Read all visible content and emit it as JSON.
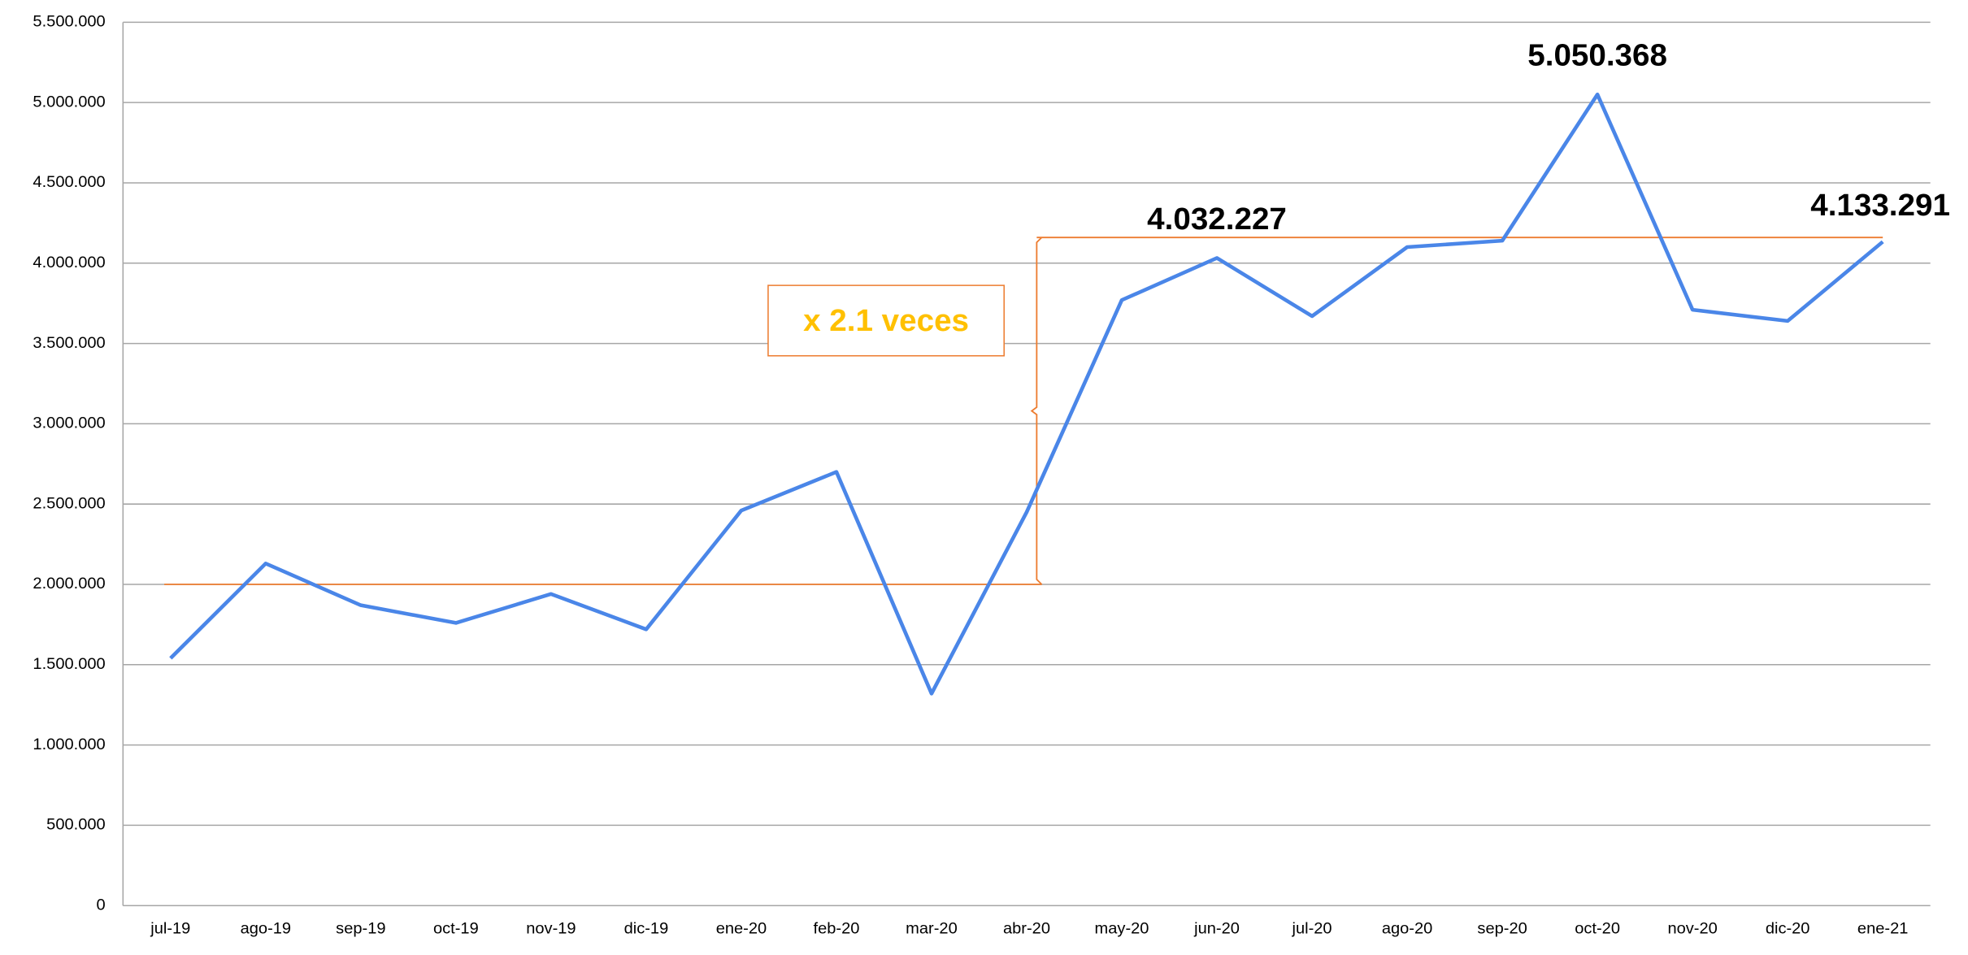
{
  "chart_data": {
    "type": "line",
    "categories": [
      "jul-19",
      "ago-19",
      "sep-19",
      "oct-19",
      "nov-19",
      "dic-19",
      "ene-20",
      "feb-20",
      "mar-20",
      "abr-20",
      "may-20",
      "jun-20",
      "jul-20",
      "ago-20",
      "sep-20",
      "oct-20",
      "nov-20",
      "dic-20",
      "ene-21"
    ],
    "series": [
      {
        "color": "#4a86e8",
        "values": [
          1540000,
          2130000,
          1870000,
          1760000,
          1940000,
          1720000,
          2460000,
          2700000,
          1320000,
          2450000,
          3770000,
          4032227,
          3670000,
          4100000,
          4140000,
          5050368,
          3710000,
          3640000,
          4133291
        ],
        "value_labels": [
          null,
          null,
          null,
          null,
          null,
          null,
          null,
          null,
          null,
          null,
          null,
          "4.032.227",
          null,
          null,
          null,
          "5.050.368",
          null,
          null,
          "4.133.291"
        ]
      }
    ],
    "ylim": [
      0,
      5500000
    ],
    "yticks": [
      0,
      {
        "value": 500000,
        "label": "500.000"
      },
      {
        "value": 1000000,
        "label": "1.000.000"
      },
      {
        "value": 1500000,
        "label": "1.500.000"
      },
      {
        "value": 2000000,
        "label": "2.000.000"
      },
      {
        "value": 2500000,
        "label": "2.500.000"
      },
      {
        "value": 3000000,
        "label": "3.000.000"
      },
      {
        "value": 3500000,
        "label": "3.500.000"
      },
      {
        "value": 4000000,
        "label": "4.000.000"
      },
      {
        "value": 4500000,
        "label": "4.500.000"
      },
      {
        "value": 5000000,
        "label": "5.000.000"
      },
      {
        "value": 5500000,
        "label": "5.500.000"
      }
    ],
    "grid": true,
    "reference_lines": [
      {
        "value": 2000000,
        "color": "#ed7d31"
      },
      {
        "value": 4160000,
        "color": "#ed7d31"
      }
    ],
    "annotation": "x 2.1 veces"
  }
}
